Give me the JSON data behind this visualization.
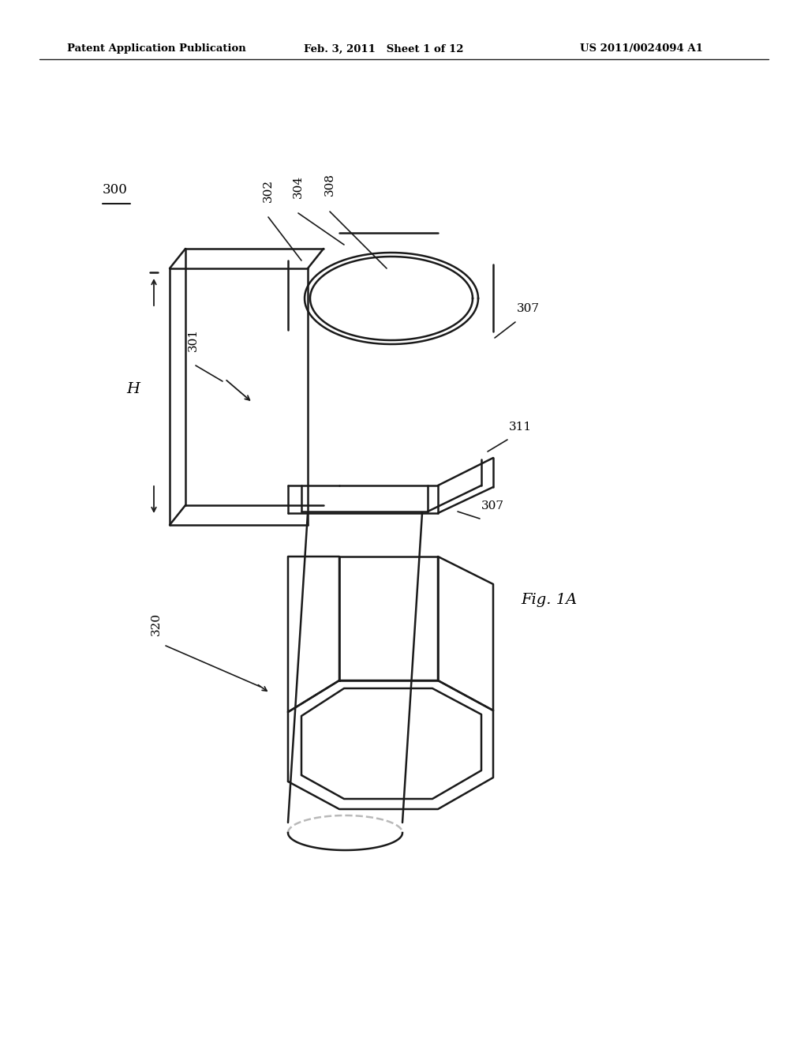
{
  "bg_color": "#ffffff",
  "line_color": "#1a1a1a",
  "header_left": "Patent Application Publication",
  "header_mid": "Feb. 3, 2011   Sheet 1 of 12",
  "header_right": "US 2011/0024094 A1",
  "fig_label": "Fig. 1A",
  "label_300": "300",
  "label_301": "301",
  "label_302": "302",
  "label_304": "304",
  "label_307a": "307",
  "label_307b": "307",
  "label_308": "308",
  "label_311": "311",
  "label_320": "320",
  "label_H": "H"
}
